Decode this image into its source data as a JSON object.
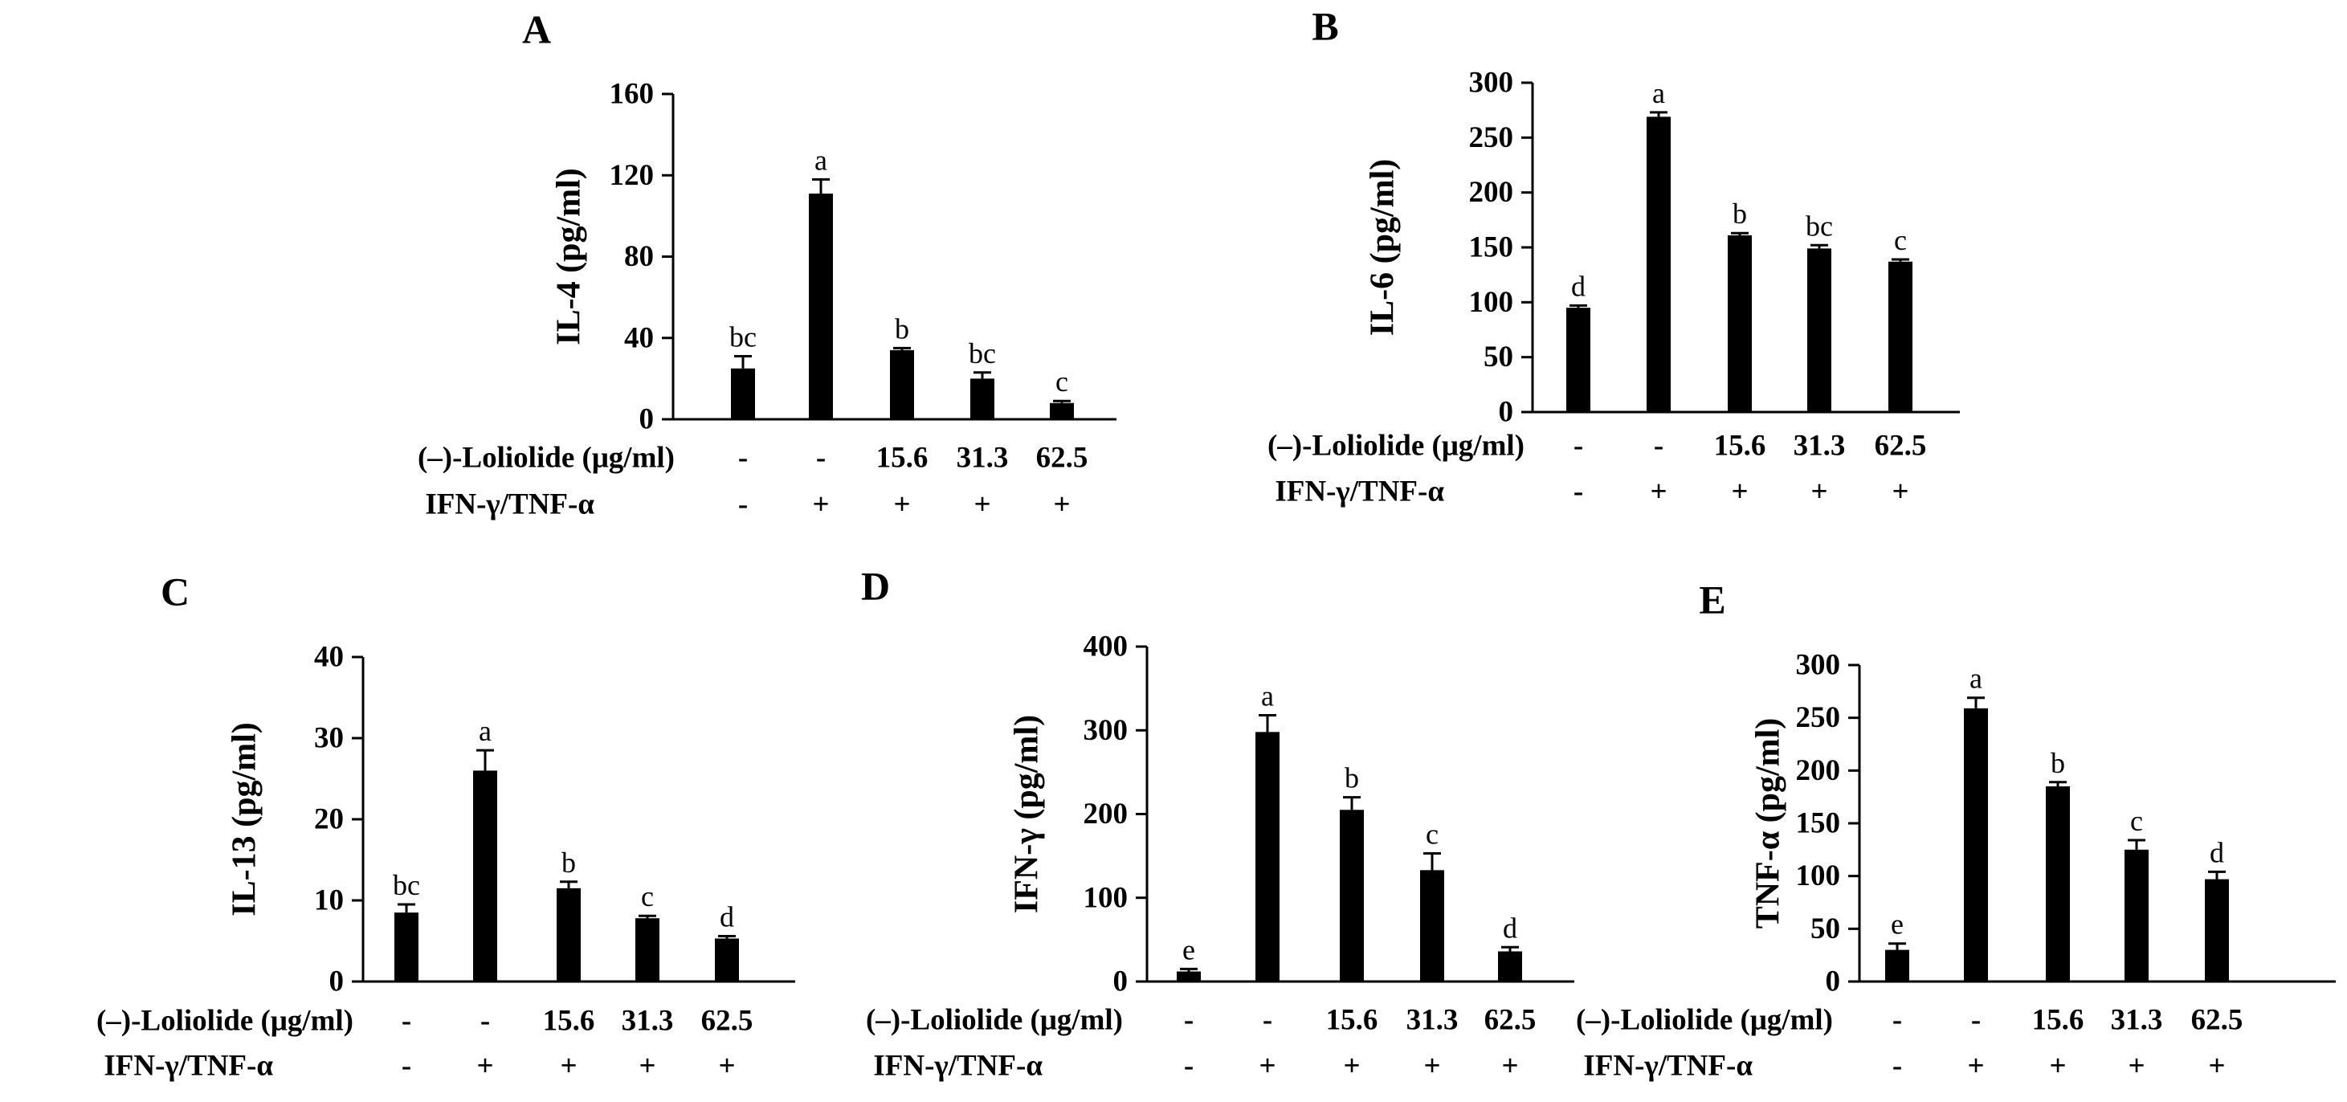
{
  "chart_data": [
    {
      "type": "bar",
      "panel_label": "A",
      "ylabel": "IL-4 (pg/ml)",
      "ylim": [
        0,
        160
      ],
      "yticks": [
        "0",
        "40",
        "80",
        "120",
        "160"
      ],
      "values": [
        25,
        111,
        34,
        20,
        8
      ],
      "errors": [
        6,
        7,
        1,
        3,
        1
      ],
      "significance": [
        "bc",
        "a",
        "b",
        "bc",
        "c"
      ],
      "row1_label": "(–)-Loliolide (μg/ml)",
      "row1_values": [
        "-",
        "-",
        "15.6",
        "31.3",
        "62.5"
      ],
      "row2_label": "IFN-γ/TNF-α",
      "row2_values": [
        "-",
        "+",
        "+",
        "+",
        "+"
      ]
    },
    {
      "type": "bar",
      "panel_label": "B",
      "ylabel": "IL-6 (pg/ml)",
      "ylim": [
        0,
        300
      ],
      "yticks": [
        "0",
        "50",
        "100",
        "150",
        "200",
        "250",
        "300"
      ],
      "values": [
        95,
        269,
        161,
        149,
        137
      ],
      "errors": [
        2,
        4,
        2,
        3,
        2
      ],
      "significance": [
        "d",
        "a",
        "b",
        "bc",
        "c"
      ],
      "row1_label": "(–)-Loliolide (μg/ml)",
      "row1_values": [
        "-",
        "-",
        "15.6",
        "31.3",
        "62.5"
      ],
      "row2_label": "IFN-γ/TNF-α",
      "row2_values": [
        "-",
        "+",
        "+",
        "+",
        "+"
      ]
    },
    {
      "type": "bar",
      "panel_label": "C",
      "ylabel": "IL-13 (pg/ml)",
      "ylim": [
        0,
        40
      ],
      "yticks": [
        "0",
        "10",
        "20",
        "30",
        "40"
      ],
      "values": [
        8.5,
        26,
        11.5,
        7.8,
        5.3
      ],
      "errors": [
        1,
        2.5,
        0.8,
        0.3,
        0.3
      ],
      "significance": [
        "bc",
        "a",
        "b",
        "c",
        "d"
      ],
      "row1_label": "(–)-Loliolide (μg/ml)",
      "row1_values": [
        "-",
        "-",
        "15.6",
        "31.3",
        "62.5"
      ],
      "row2_label": "IFN-γ/TNF-α",
      "row2_values": [
        "-",
        "+",
        "+",
        "+",
        "+"
      ]
    },
    {
      "type": "bar",
      "panel_label": "D",
      "ylabel": "IFN-γ (pg/ml)",
      "ylim": [
        0,
        400
      ],
      "yticks": [
        "0",
        "100",
        "200",
        "300",
        "400"
      ],
      "values": [
        12,
        298,
        205,
        133,
        36
      ],
      "errors": [
        3,
        20,
        15,
        20,
        5
      ],
      "significance": [
        "e",
        "a",
        "b",
        "c",
        "d"
      ],
      "row1_label": "(–)-Loliolide (μg/ml)",
      "row1_values": [
        "-",
        "-",
        "15.6",
        "31.3",
        "62.5"
      ],
      "row2_label": "IFN-γ/TNF-α",
      "row2_values": [
        "-",
        "+",
        "+",
        "+",
        "+"
      ]
    },
    {
      "type": "bar",
      "panel_label": "E",
      "ylabel": "TNF-α (pg/ml)",
      "ylim": [
        0,
        300
      ],
      "yticks": [
        "0",
        "50",
        "100",
        "150",
        "200",
        "250",
        "300"
      ],
      "values": [
        30,
        259,
        185,
        125,
        97
      ],
      "errors": [
        6,
        10,
        4,
        9,
        7
      ],
      "significance": [
        "e",
        "a",
        "b",
        "c",
        "d"
      ],
      "row1_label": "(–)-Loliolide (μg/ml)",
      "row1_values": [
        "-",
        "-",
        "15.6",
        "31.3",
        "62.5"
      ],
      "row2_label": "IFN-γ/TNF-α",
      "row2_values": [
        "-",
        "+",
        "+",
        "+",
        "+"
      ]
    }
  ],
  "colors": {
    "bar": "#000000",
    "axis": "#000000",
    "text": "#000000",
    "background": "#ffffff"
  }
}
